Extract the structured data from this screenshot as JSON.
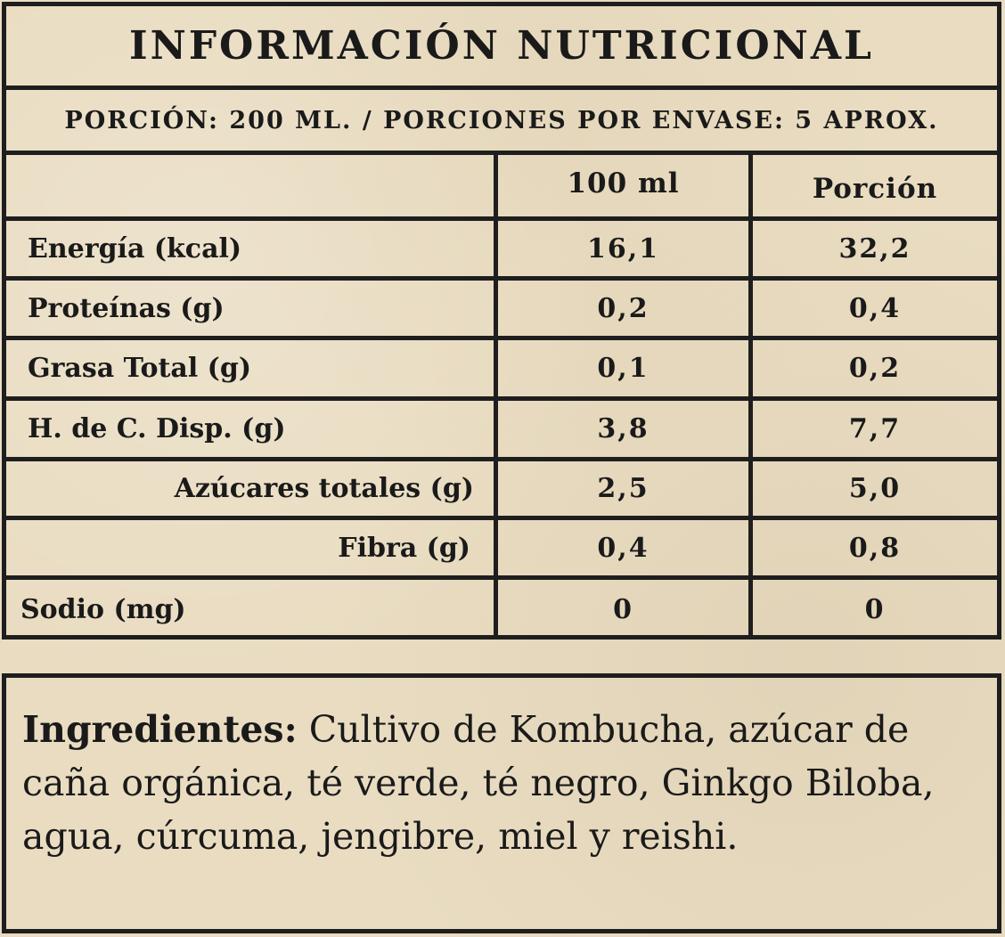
{
  "nutrition": {
    "title": "INFORMACIÓN NUTRICIONAL",
    "portion_line": "PORCIÓN: 200 ML. / PORCIONES POR ENVASE: 5 APROX.",
    "columns": [
      "",
      "100 ml",
      "Porción"
    ],
    "rows": [
      {
        "label": "Energía (kcal)",
        "per_100ml": "16,1",
        "per_portion": "32,2"
      },
      {
        "label": "Proteínas (g)",
        "per_100ml": "0,2",
        "per_portion": "0,4"
      },
      {
        "label": "Grasa Total (g)",
        "per_100ml": "0,1",
        "per_portion": "0,2"
      },
      {
        "label": "H. de C. Disp. (g)",
        "per_100ml": "3,8",
        "per_portion": "7,7"
      },
      {
        "label": "Azúcares totales (g)",
        "per_100ml": "2,5",
        "per_portion": "5,0"
      },
      {
        "label": "Fibra (g)",
        "per_100ml": "0,4",
        "per_portion": "0,8"
      },
      {
        "label": "Sodio (mg)",
        "per_100ml": "0",
        "per_portion": "0"
      }
    ]
  },
  "ingredients": {
    "label": "Ingredientes:",
    "text": " Cultivo de Kombucha, azúcar de caña orgánica, té verde, té negro, Ginkgo Biloba, agua, cúrcuma, jengibre, miel y reishi."
  }
}
